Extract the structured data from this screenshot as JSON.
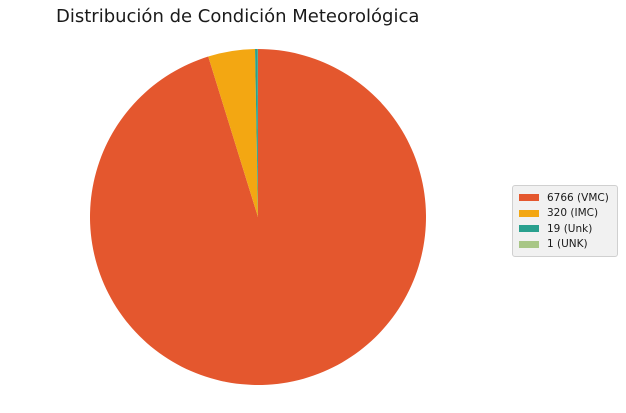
{
  "chart_data": {
    "type": "pie",
    "title": "Distribución de Condición Meteorológica",
    "legend_position": "right",
    "slices": [
      {
        "label": "6766 (VMC)",
        "value": 6766,
        "color": "#e4572e"
      },
      {
        "label": "320 (IMC)",
        "value": 320,
        "color": "#f3a712"
      },
      {
        "label": "19 (Unk)",
        "value": 19,
        "color": "#29a08e"
      },
      {
        "label": "1 (UNK)",
        "value": 1,
        "color": "#a8c686"
      }
    ]
  }
}
